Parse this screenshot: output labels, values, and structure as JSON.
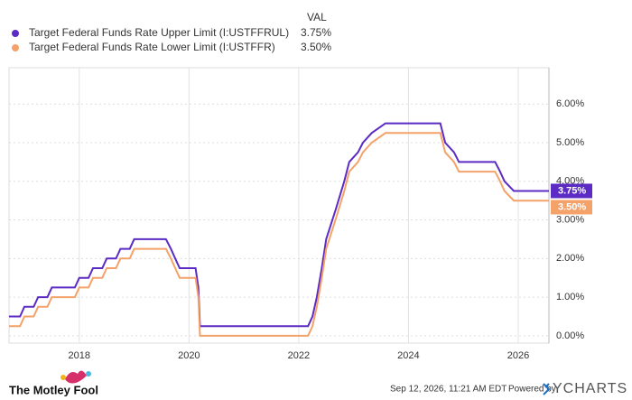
{
  "chart_data": {
    "type": "line",
    "legend_header": "VAL",
    "x": [
      2016.72,
      2016.92,
      2017.0,
      2017.17,
      2017.25,
      2017.42,
      2017.5,
      2017.92,
      2018.0,
      2018.17,
      2018.25,
      2018.42,
      2018.5,
      2018.67,
      2018.75,
      2018.92,
      2019.0,
      2019.58,
      2019.67,
      2019.75,
      2019.83,
      2020.12,
      2020.17,
      2020.2,
      2022.17,
      2022.25,
      2022.33,
      2022.42,
      2022.5,
      2022.67,
      2022.83,
      2022.92,
      2023.08,
      2023.17,
      2023.33,
      2023.58,
      2024.58,
      2024.67,
      2024.83,
      2024.92,
      2025.58,
      2025.67,
      2025.75,
      2025.92,
      2026.56
    ],
    "series": [
      {
        "name": "Target Federal Funds Rate Upper Limit (I:USTFFRUL)",
        "color": "#5b2bc4",
        "last_label": "3.75%",
        "values": [
          0.5,
          0.5,
          0.75,
          0.75,
          1.0,
          1.0,
          1.25,
          1.25,
          1.5,
          1.5,
          1.75,
          1.75,
          2.0,
          2.0,
          2.25,
          2.25,
          2.5,
          2.5,
          2.25,
          2.0,
          1.75,
          1.75,
          1.25,
          0.25,
          0.25,
          0.5,
          1.0,
          1.75,
          2.5,
          3.25,
          4.0,
          4.5,
          4.75,
          5.0,
          5.25,
          5.5,
          5.5,
          5.0,
          4.75,
          4.5,
          4.5,
          4.25,
          4.0,
          3.75,
          3.75
        ]
      },
      {
        "name": "Target Federal Funds Rate Lower Limit (I:USTFFR)",
        "color": "#f5a26a",
        "last_label": "3.50%",
        "values": [
          0.25,
          0.25,
          0.5,
          0.5,
          0.75,
          0.75,
          1.0,
          1.0,
          1.25,
          1.25,
          1.5,
          1.5,
          1.75,
          1.75,
          2.0,
          2.0,
          2.25,
          2.25,
          2.0,
          1.75,
          1.5,
          1.5,
          1.0,
          0.0,
          0.0,
          0.25,
          0.75,
          1.5,
          2.25,
          3.0,
          3.75,
          4.25,
          4.5,
          4.75,
          5.0,
          5.25,
          5.25,
          4.75,
          4.5,
          4.25,
          4.25,
          4.0,
          3.75,
          3.5,
          3.5
        ]
      }
    ],
    "xlim": [
      2016.72,
      2026.56
    ],
    "xticks": [
      2018,
      2020,
      2022,
      2024,
      2026
    ],
    "ylim": [
      -0.19,
      6.94
    ],
    "yticks": [
      {
        "value": 0,
        "label": "0.00%"
      },
      {
        "value": 1,
        "label": "1.00%"
      },
      {
        "value": 2,
        "label": "2.00%"
      },
      {
        "value": 3,
        "label": "3.00%"
      },
      {
        "value": 4,
        "label": "4.00%"
      },
      {
        "value": 5,
        "label": "5.00%"
      },
      {
        "value": 6,
        "label": "6.00%"
      }
    ],
    "grid": true,
    "brand": "The Motley Fool",
    "timestamp": "Sep 12, 2026, 11:21 AM EDT",
    "powered_by": "Powered by",
    "provider": "YCHARTS"
  }
}
